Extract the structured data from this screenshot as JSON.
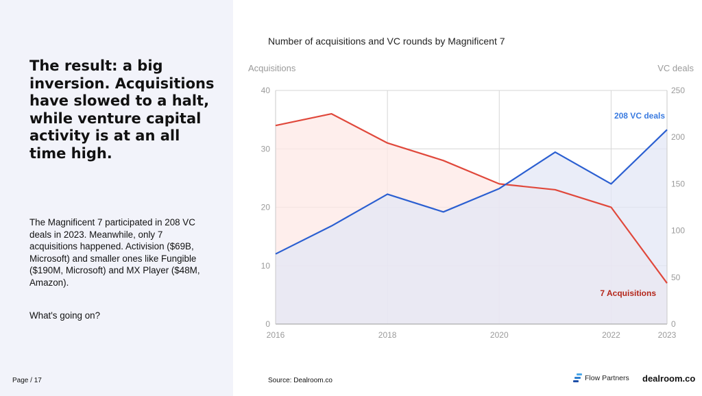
{
  "slide": {
    "headline": "The result: a big inversion. Acquisitions have slowed to a halt, while venture capital activity is at an all time high.",
    "body": "The Magnificent 7 participated in 208 VC deals in 2023. Meanwhile, only 7 acquisitions happened. Activision ($69B, Microsoft) and smaller ones like Fungible ($190M, Microsoft) and MX Player ($48M, Amazon).",
    "question": "What's going on?",
    "page": "Page / 17",
    "source": "Source: Dealroom.co",
    "logo_flow": "Flow Partners",
    "logo_dealroom": "dealroom.co"
  },
  "chart_data": {
    "type": "area",
    "title": "Number of acquisitions and VC rounds by Magnificent 7",
    "x": [
      2016,
      2017,
      2018,
      2019,
      2020,
      2021,
      2022,
      2023
    ],
    "x_tick_labels": [
      "2016",
      "2018",
      "2020",
      "2022",
      "2023"
    ],
    "y_left_label": "Acquisitions",
    "y_right_label": "VC deals",
    "y_left_ticks": [
      0,
      10,
      20,
      30,
      40
    ],
    "y_right_ticks": [
      0,
      50,
      100,
      150,
      200,
      250
    ],
    "ylim_left": [
      0,
      40
    ],
    "ylim_right": [
      0,
      250
    ],
    "grid": true,
    "series": [
      {
        "name": "Acquisitions",
        "axis": "left",
        "color": "#e0483b",
        "fill": "#fde8e6",
        "values": [
          34,
          36,
          31,
          28,
          24,
          23,
          20,
          7
        ]
      },
      {
        "name": "VC deals",
        "axis": "right",
        "color": "#2b5fd1",
        "fill": "#e3e7f5",
        "values": [
          75,
          105,
          139,
          120,
          145,
          184,
          150,
          208
        ]
      }
    ],
    "annotations": [
      {
        "text": "208 VC deals",
        "color": "#3a7be0"
      },
      {
        "text": "7 Acquisitions",
        "color": "#b4261a"
      }
    ]
  },
  "colors": {
    "panel": "#f2f3fa",
    "grid": "#d6d6d6",
    "axis_text": "#9a9a9a"
  }
}
